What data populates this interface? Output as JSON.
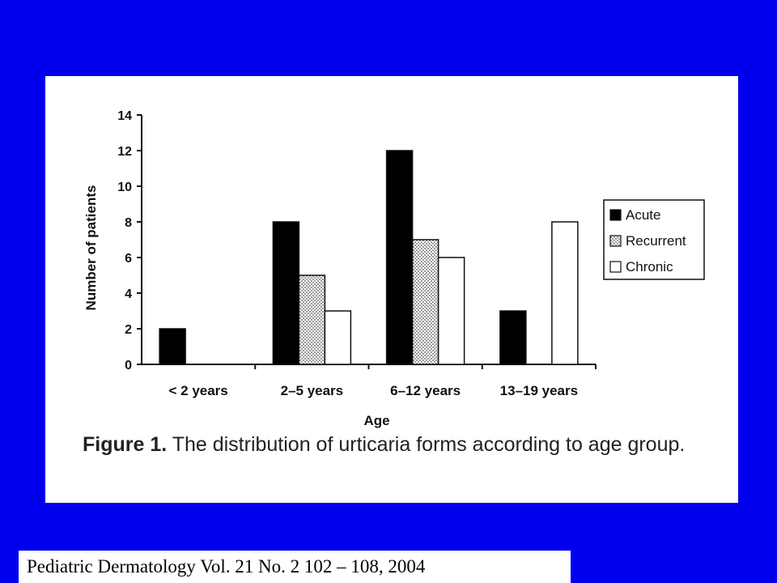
{
  "chart_data": {
    "type": "bar",
    "xlabel": "Age",
    "ylabel": "Number of patients",
    "ylim": [
      0,
      14
    ],
    "yticks": [
      0,
      2,
      4,
      6,
      8,
      10,
      12,
      14
    ],
    "categories": [
      "< 2 years",
      "2–5 years",
      "6–12 years",
      "13–19 years"
    ],
    "series": [
      {
        "name": "Acute",
        "values": [
          2,
          8,
          12,
          3
        ],
        "fill": "#000000"
      },
      {
        "name": "Recurrent",
        "values": [
          0,
          5,
          7,
          0
        ],
        "fill": "dotted"
      },
      {
        "name": "Chronic",
        "values": [
          0,
          3,
          6,
          8
        ],
        "fill": "#ffffff"
      }
    ],
    "legend_position": "right",
    "grid": false
  },
  "caption": {
    "label": "Figure 1.",
    "text": "The distribution of urticaria forms according to age group."
  },
  "citation": "Pediatric Dermatology  Vol. 21  No. 2  102 – 108, 2004",
  "colors": {
    "background": "#0000ee",
    "panel": "#ffffff"
  }
}
